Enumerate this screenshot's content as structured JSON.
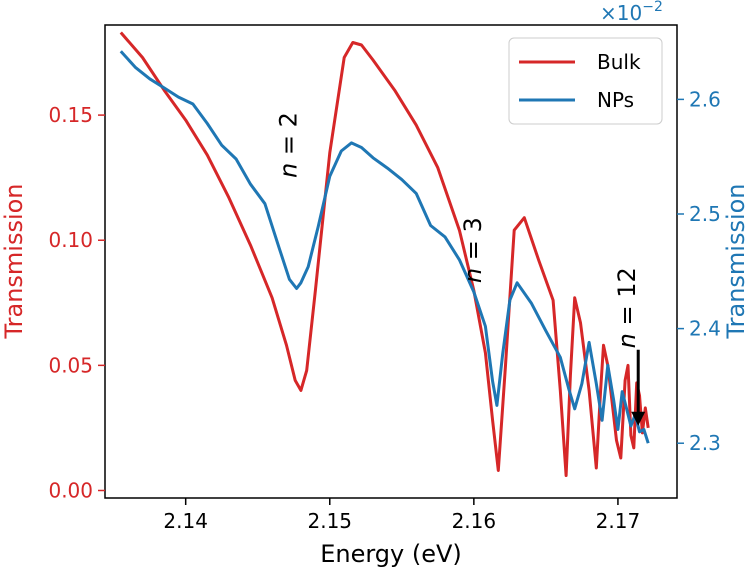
{
  "chart_data": {
    "type": "line",
    "xlabel": "Energy (eV)",
    "ylabel_left": "Transmission",
    "ylabel_right": "Transmission",
    "right_multiplier_label": "×10",
    "right_multiplier_exp": "−2",
    "xlim": [
      2.1344,
      2.1741
    ],
    "ylim_left": [
      -0.003,
      0.186
    ],
    "ylim_right": [
      2.2522,
      2.6649
    ],
    "x_ticks": [
      2.14,
      2.15,
      2.16,
      2.17
    ],
    "x_tick_labels": [
      "2.14",
      "2.15",
      "2.16",
      "2.17"
    ],
    "y_left_ticks": [
      0.0,
      0.05,
      0.1,
      0.15
    ],
    "y_left_tick_labels": [
      "0.00",
      "0.05",
      "0.10",
      "0.15"
    ],
    "y_right_ticks": [
      2.3,
      2.4,
      2.5,
      2.6
    ],
    "y_right_tick_labels": [
      "2.3",
      "2.4",
      "2.5",
      "2.6"
    ],
    "legend_position": "top-right",
    "colors": {
      "bulk": "#d62728",
      "nps": "#1f77b4",
      "arrow": "#000000"
    },
    "series": [
      {
        "name": "Bulk",
        "axis": "left",
        "x": [
          2.1355,
          2.137,
          2.1385,
          2.14,
          2.1415,
          2.143,
          2.1445,
          2.146,
          2.147,
          2.1476,
          2.148,
          2.1484,
          2.149,
          2.15,
          2.151,
          2.1516,
          2.1522,
          2.153,
          2.1545,
          2.156,
          2.1575,
          2.159,
          2.16,
          2.1608,
          2.1613,
          2.1617,
          2.1622,
          2.1628,
          2.1635,
          2.1645,
          2.1655,
          2.166,
          2.1664,
          2.1667,
          2.167,
          2.1674,
          2.168,
          2.1685,
          2.1688,
          2.169,
          2.1693,
          2.1696,
          2.1699,
          2.1702,
          2.1705,
          2.1707,
          2.1709,
          2.1711,
          2.1713,
          2.1715,
          2.1717,
          2.1719,
          2.1721
        ],
        "y": [
          0.183,
          0.173,
          0.16,
          0.148,
          0.134,
          0.117,
          0.098,
          0.077,
          0.058,
          0.044,
          0.04,
          0.048,
          0.08,
          0.135,
          0.173,
          0.179,
          0.178,
          0.172,
          0.16,
          0.146,
          0.129,
          0.104,
          0.08,
          0.055,
          0.028,
          0.008,
          0.05,
          0.104,
          0.109,
          0.092,
          0.076,
          0.04,
          0.006,
          0.046,
          0.077,
          0.067,
          0.04,
          0.009,
          0.04,
          0.058,
          0.05,
          0.035,
          0.02,
          0.013,
          0.044,
          0.05,
          0.022,
          0.017,
          0.043,
          0.038,
          0.023,
          0.033,
          0.025
        ]
      },
      {
        "name": "NPs",
        "axis": "right",
        "x": [
          2.1355,
          2.1365,
          2.1375,
          2.1385,
          2.1395,
          2.1405,
          2.1415,
          2.1425,
          2.1435,
          2.1445,
          2.1455,
          2.1465,
          2.1472,
          2.1477,
          2.148,
          2.1485,
          2.1492,
          2.15,
          2.1508,
          2.1515,
          2.1522,
          2.153,
          2.154,
          2.155,
          2.156,
          2.157,
          2.158,
          2.159,
          2.16,
          2.1608,
          2.1613,
          2.1616,
          2.162,
          2.1625,
          2.163,
          2.164,
          2.165,
          2.166,
          2.1666,
          2.167,
          2.1675,
          2.168,
          2.1685,
          2.1689,
          2.1693,
          2.1697,
          2.17,
          2.1703,
          2.1706,
          2.1709,
          2.1712,
          2.1715,
          2.1718,
          2.1721
        ],
        "y": [
          2.642,
          2.628,
          2.618,
          2.61,
          2.602,
          2.596,
          2.579,
          2.56,
          2.548,
          2.526,
          2.509,
          2.47,
          2.443,
          2.435,
          2.44,
          2.454,
          2.489,
          2.533,
          2.555,
          2.562,
          2.558,
          2.549,
          2.54,
          2.53,
          2.518,
          2.49,
          2.48,
          2.46,
          2.432,
          2.402,
          2.354,
          2.333,
          2.378,
          2.425,
          2.44,
          2.422,
          2.398,
          2.375,
          2.347,
          2.33,
          2.352,
          2.388,
          2.352,
          2.32,
          2.368,
          2.338,
          2.312,
          2.345,
          2.33,
          2.315,
          2.325,
          2.31,
          2.312,
          2.3
        ]
      }
    ],
    "annotations": [
      {
        "text": "n = 2",
        "x": 2.1477,
        "y_left": 0.138
      },
      {
        "text": "n = 3",
        "x": 2.1605,
        "y_left": 0.096
      },
      {
        "text": "n = 12",
        "x": 2.1712,
        "y_left": 0.073
      }
    ]
  }
}
